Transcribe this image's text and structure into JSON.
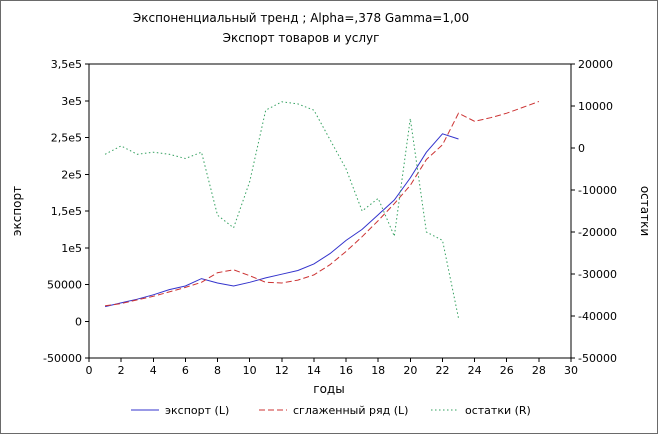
{
  "chart_data": {
    "type": "line",
    "title": "Экспоненциальный тренд ; Alpha=,378 Gamma=1,00",
    "subtitle": "Экспорт товаров и услуг",
    "xlabel": "годы",
    "ylabel_left": "экспорт",
    "ylabel_right": "остатки",
    "xlim": [
      0,
      30
    ],
    "grid": false,
    "legend_position": "bottom",
    "x_ticks": {
      "values": [
        0,
        2,
        4,
        6,
        8,
        10,
        12,
        14,
        16,
        18,
        20,
        22,
        24,
        26,
        28,
        30
      ],
      "labels": [
        "0",
        "2",
        "4",
        "6",
        "8",
        "10",
        "12",
        "14",
        "16",
        "18",
        "20",
        "22",
        "24",
        "26",
        "28",
        "30"
      ]
    },
    "left_axis": {
      "min": -50000,
      "max": 350000,
      "tick_values": [
        -50000,
        0,
        50000,
        100000,
        150000,
        200000,
        250000,
        300000,
        350000
      ],
      "tick_labels": [
        "-50000",
        "0",
        "50000",
        "1e5",
        "1,5e5",
        "2e5",
        "2,5e5",
        "3e5",
        "3,5e5"
      ]
    },
    "right_axis": {
      "min": -50000,
      "max": 20000,
      "tick_values": [
        -50000,
        -40000,
        -30000,
        -20000,
        -10000,
        0,
        10000,
        20000
      ],
      "tick_labels": [
        "-50000",
        "-40000",
        "-30000",
        "-20000",
        "-10000",
        "0",
        "10000",
        "20000"
      ]
    },
    "series": [
      {
        "name": "экспорт (L)",
        "axis": "left",
        "line_style": "solid",
        "color": "#3333cc",
        "x": [
          1,
          2,
          3,
          4,
          5,
          6,
          7,
          8,
          9,
          10,
          11,
          12,
          13,
          14,
          15,
          16,
          17,
          18,
          19,
          20,
          21,
          22,
          23
        ],
        "values": [
          20000,
          25000,
          30000,
          36000,
          43000,
          48000,
          58000,
          52000,
          48000,
          53000,
          59000,
          64000,
          69000,
          78000,
          92000,
          110000,
          125000,
          145000,
          165000,
          195000,
          230000,
          255000,
          248000
        ]
      },
      {
        "name": "сглаженный ряд (L)",
        "axis": "left",
        "line_style": "dashed",
        "color": "#cc3333",
        "x": [
          1,
          2,
          3,
          4,
          5,
          6,
          7,
          8,
          9,
          10,
          11,
          12,
          13,
          14,
          15,
          16,
          17,
          18,
          19,
          20,
          21,
          22,
          23,
          24,
          25,
          26,
          27,
          28
        ],
        "values": [
          21000,
          24000,
          29000,
          34000,
          40000,
          46000,
          53000,
          66000,
          70000,
          62000,
          53000,
          52000,
          56000,
          63000,
          77000,
          95000,
          115000,
          137000,
          160000,
          185000,
          220000,
          240000,
          283000,
          272000,
          277000,
          283000,
          291000,
          299000
        ]
      },
      {
        "name": "остатки (R)",
        "axis": "right",
        "line_style": "dotted",
        "color": "#33a05f",
        "x": [
          1,
          2,
          3,
          4,
          5,
          6,
          7,
          8,
          9,
          10,
          11,
          12,
          13,
          14,
          15,
          16,
          17,
          18,
          19,
          20,
          21,
          22,
          23
        ],
        "values": [
          -1500,
          500,
          -1500,
          -1000,
          -1500,
          -2500,
          -1000,
          -16000,
          -19000,
          -8000,
          9000,
          11000,
          10500,
          9000,
          2000,
          -5000,
          -15000,
          -12000,
          -21000,
          7000,
          -20000,
          -22000,
          -40500
        ]
      }
    ]
  }
}
